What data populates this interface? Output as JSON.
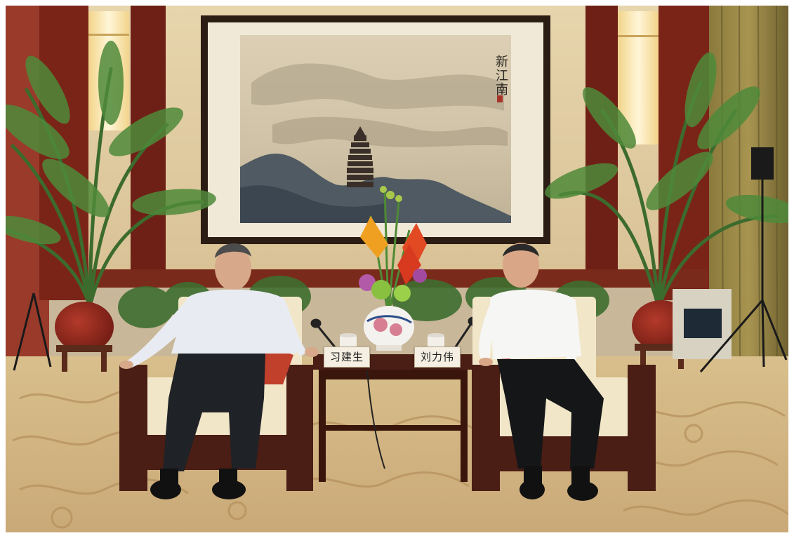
{
  "photo": {
    "placards": {
      "left": "习建生",
      "right": "刘力伟"
    },
    "painting": {
      "calligraphy_title": "新江南"
    }
  }
}
